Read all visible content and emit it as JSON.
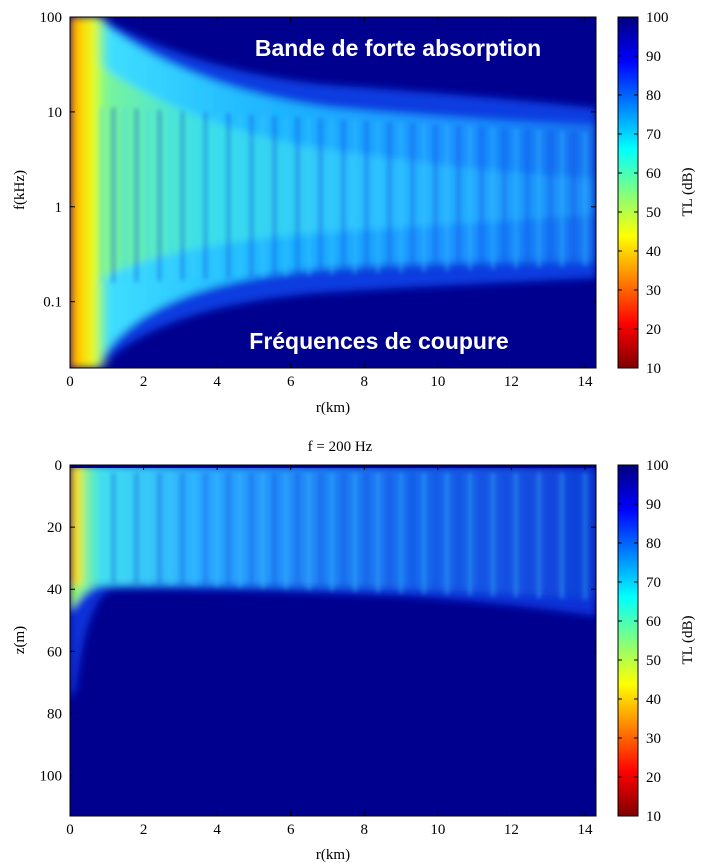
{
  "chart_data": [
    {
      "type": "heatmap",
      "title": "",
      "xlabel": "r(km)",
      "ylabel": "f(kHz)",
      "colorbar_label": "TL (dB)",
      "xlim": [
        0,
        14.3
      ],
      "ylim": [
        0.02,
        100
      ],
      "y_scale": "log",
      "x_ticks": [
        0,
        2,
        4,
        6,
        8,
        10,
        12,
        14
      ],
      "x_tick_labels": [
        "0",
        "2",
        "4",
        "6",
        "8",
        "10",
        "12",
        "14"
      ],
      "y_ticks": [
        100,
        10,
        1,
        0.1
      ],
      "y_tick_labels": [
        "100",
        "10",
        "1",
        "0.1"
      ],
      "clim": [
        10,
        100
      ],
      "colorbar_ticks": [
        100,
        90,
        80,
        70,
        60,
        50,
        40,
        30,
        20,
        10
      ],
      "colorbar_tick_labels": [
        "100",
        "90",
        "80",
        "70",
        "60",
        "50",
        "40",
        "30",
        "20",
        "10"
      ],
      "colormap": "jet-reversed",
      "annotations": [
        "Bande de forte absorption",
        "Fréquences de coupure"
      ]
    },
    {
      "type": "heatmap",
      "title": "f = 200 Hz",
      "xlabel": "r(km)",
      "ylabel": "z(m)",
      "colorbar_label": "TL (dB)",
      "xlim": [
        0,
        14.3
      ],
      "ylim": [
        0,
        113
      ],
      "y_direction": "down",
      "x_ticks": [
        0,
        2,
        4,
        6,
        8,
        10,
        12,
        14
      ],
      "x_tick_labels": [
        "0",
        "2",
        "4",
        "6",
        "8",
        "10",
        "12",
        "14"
      ],
      "y_ticks": [
        0,
        20,
        40,
        60,
        80,
        100
      ],
      "y_tick_labels": [
        "0",
        "20",
        "40",
        "60",
        "80",
        "100"
      ],
      "clim": [
        10,
        100
      ],
      "colorbar_ticks": [
        100,
        90,
        80,
        70,
        60,
        50,
        40,
        30,
        20,
        10
      ],
      "colorbar_tick_labels": [
        "100",
        "90",
        "80",
        "70",
        "60",
        "50",
        "40",
        "30",
        "20",
        "10"
      ],
      "colormap": "jet-reversed"
    }
  ]
}
